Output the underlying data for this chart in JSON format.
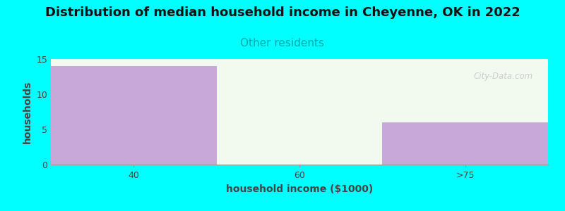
{
  "title": "Distribution of median household income in Cheyenne, OK in 2022",
  "subtitle": "Other residents",
  "xlabel": "household income ($1000)",
  "ylabel": "households",
  "categories": [
    "40",
    "60",
    ">75"
  ],
  "values": [
    14,
    0,
    6
  ],
  "bar_color": "#C8A8D8",
  "background_color": "#00FFFF",
  "plot_bg_color": "#F2FAF0",
  "ylim": [
    0,
    15
  ],
  "yticks": [
    0,
    5,
    10,
    15
  ],
  "title_fontsize": 13,
  "subtitle_fontsize": 11,
  "subtitle_color": "#00AAAA",
  "axis_label_fontsize": 10,
  "tick_fontsize": 9,
  "bar_width": 1.0,
  "watermark": "City-Data.com"
}
